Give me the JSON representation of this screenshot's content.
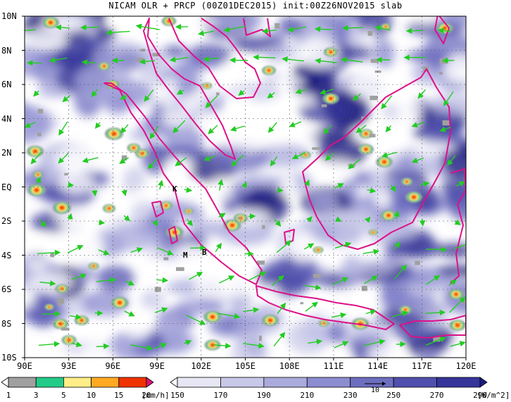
{
  "title": "NICAM OLR + PRCP (00Z01DEC2015) init:00Z26NOV2015 slab",
  "axes": {
    "y_labels": [
      "10N",
      "8N",
      "6N",
      "4N",
      "2N",
      "EQ",
      "2S",
      "4S",
      "6S",
      "8S",
      "10S"
    ],
    "x_labels": [
      "90E",
      "93E",
      "96E",
      "99E",
      "102E",
      "105E",
      "108E",
      "111E",
      "114E",
      "117E",
      "120E"
    ]
  },
  "site_labels": [
    {
      "id": "K",
      "text": "K"
    },
    {
      "id": "M",
      "text": "M"
    },
    {
      "id": "B",
      "text": "B"
    }
  ],
  "precip_colorbar": {
    "labels": [
      "1",
      "3",
      "5",
      "10",
      "15",
      "20"
    ],
    "unit": "[mm/h]",
    "colors": [
      "#ffffff",
      "#a0a0a0",
      "#22cc88",
      "#ffee88",
      "#ffaa22",
      "#ee3300",
      "#dd1177"
    ]
  },
  "olr_colorbar": {
    "labels": [
      "150",
      "170",
      "190",
      "210",
      "230",
      "250",
      "270",
      "290"
    ],
    "unit": "[W/m^2]",
    "colors": [
      "#ffffff",
      "#e6e6f4",
      "#c8c8e8",
      "#aaaadc",
      "#8c8cd0",
      "#6e6ec0",
      "#4f4fae",
      "#35359a",
      "#1c1c80"
    ]
  },
  "wind_reference": {
    "label": "10"
  },
  "colors": {
    "coastline": "#dd1188",
    "wind_vector": "#22cc22",
    "grid": "#444444"
  }
}
